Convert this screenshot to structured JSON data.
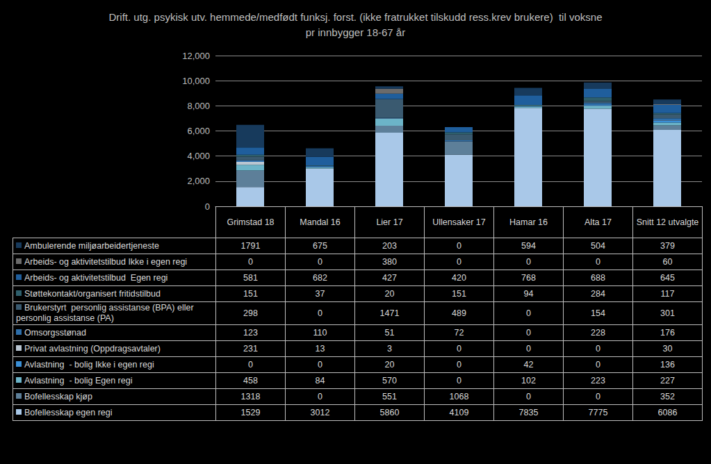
{
  "chart_data": {
    "type": "bar",
    "stacked": true,
    "title": "Drift. utg. psykisk utv. hemmede/medfødt funksj. forst. (ikke fratrukket tilskudd ress.krev brukere)  til voksne\npr innbygger 18-67 år",
    "categories": [
      "Grimstad 18",
      "Mandal 16",
      "Lier 17",
      "Ullensaker 17",
      "Hamar 16",
      "Alta 17",
      "Snitt 12 utvalgte"
    ],
    "ylim": [
      0,
      12000
    ],
    "yticks": [
      0,
      2000,
      4000,
      6000,
      8000,
      10000,
      12000
    ],
    "grid": true,
    "tick_labels": "y",
    "series": [
      {
        "name": "Bofellesskap egen regi",
        "color": "#a9c8e8",
        "values": [
          1529,
          3012,
          5860,
          4109,
          7835,
          7775,
          6086
        ]
      },
      {
        "name": "Bofellesskap kjøp",
        "color": "#5d7f99",
        "values": [
          1318,
          0,
          551,
          1068,
          0,
          0,
          352
        ]
      },
      {
        "name": "Avlastning  - bolig Egen regi",
        "color": "#6cb4c8",
        "values": [
          458,
          84,
          570,
          0,
          102,
          223,
          227
        ]
      },
      {
        "name": "Avlastning  - bolig Ikke i egen regi",
        "color": "#3a8fd6",
        "values": [
          0,
          0,
          20,
          0,
          42,
          0,
          136
        ]
      },
      {
        "name": "Privat avlastning (Oppdragsavtaler)",
        "color": "#b9c6d2",
        "values": [
          231,
          13,
          3,
          0,
          0,
          0,
          30
        ]
      },
      {
        "name": "Omsorgsstønad",
        "color": "#2d6eaa",
        "values": [
          123,
          110,
          51,
          72,
          0,
          228,
          176
        ]
      },
      {
        "name": "Brukerstyrt  personlig assistanse (BPA) eller personlig assistanse (PA)",
        "color": "#3a5a70",
        "values": [
          298,
          0,
          1471,
          489,
          0,
          154,
          301
        ]
      },
      {
        "name": "Støttekontakt/organisert fritidstilbud",
        "color": "#2e5f6c",
        "values": [
          151,
          37,
          20,
          151,
          94,
          284,
          117
        ]
      },
      {
        "name": "Arbeids- og aktivitetstilbud  Egen regi",
        "color": "#1f5e9c",
        "values": [
          581,
          682,
          427,
          420,
          768,
          688,
          645
        ]
      },
      {
        "name": "Arbeids- og aktivitetstilbud Ikke i egen regi",
        "color": "#6b6b6b",
        "values": [
          0,
          0,
          380,
          0,
          0,
          0,
          60
        ]
      },
      {
        "name": "Ambulerende miljøarbeidertjeneste",
        "color": "#173a5c",
        "values": [
          1791,
          675,
          203,
          0,
          594,
          504,
          379
        ]
      }
    ]
  }
}
